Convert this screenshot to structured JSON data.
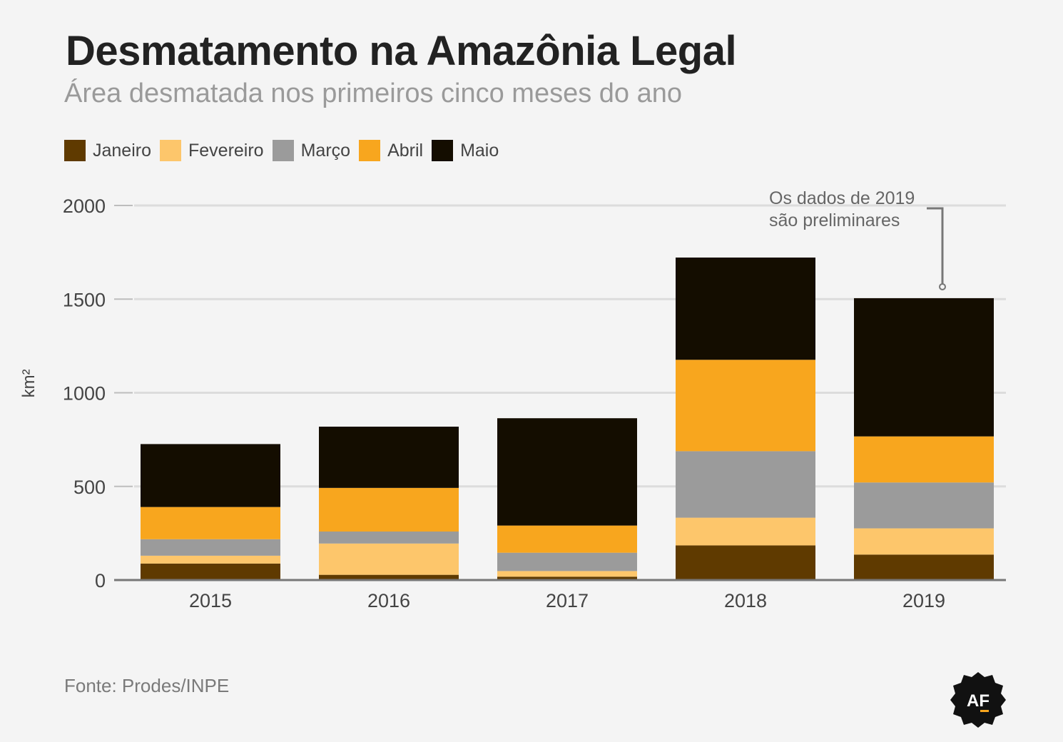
{
  "header": {
    "title": "Desmatamento na Amazônia Legal",
    "subtitle": "Área desmatada nos primeiros cinco meses do ano"
  },
  "source": "Fonte: Prodes/INPE",
  "logo_text": "AF",
  "chart_data": {
    "type": "bar",
    "stacked": true,
    "categories": [
      "2015",
      "2016",
      "2017",
      "2018",
      "2019"
    ],
    "series": [
      {
        "name": "Janeiro",
        "color": "#5f3a00",
        "values": [
          88,
          28,
          18,
          185,
          136
        ]
      },
      {
        "name": "Fevereiro",
        "color": "#fdc66b",
        "values": [
          42,
          167,
          30,
          148,
          140
        ]
      },
      {
        "name": "Março",
        "color": "#9b9b9b",
        "values": [
          88,
          64,
          98,
          355,
          245
        ]
      },
      {
        "name": "Abril",
        "color": "#f8a61e",
        "values": [
          172,
          233,
          145,
          488,
          246
        ]
      },
      {
        "name": "Maio",
        "color": "#140d00",
        "values": [
          336,
          327,
          573,
          546,
          738
        ]
      }
    ],
    "ylabel": "km²",
    "ylim": [
      0,
      2000
    ],
    "yticks": [
      0,
      500,
      1000,
      1500,
      2000
    ],
    "grid": true,
    "legend_position": "top-left",
    "annotation": {
      "category": "2019",
      "lines": [
        "Os dados de 2019",
        "são preliminares"
      ]
    }
  }
}
